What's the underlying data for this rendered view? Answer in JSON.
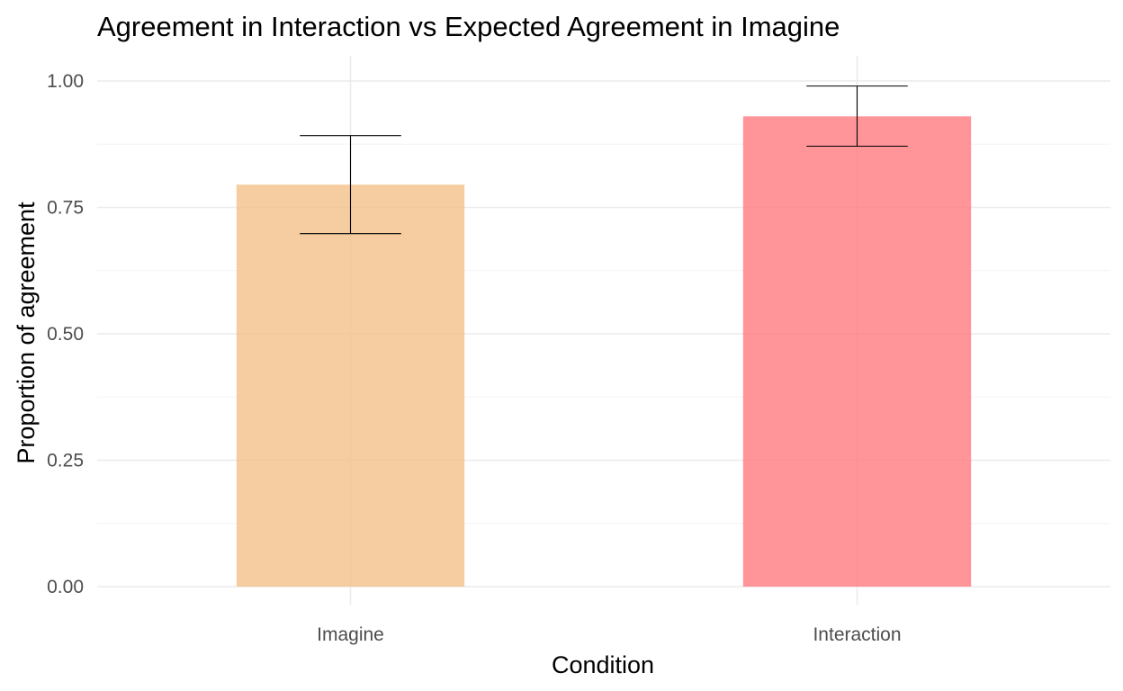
{
  "chart_data": {
    "type": "bar",
    "title": "Agreement in Interaction  vs Expected Agreement in Imagine",
    "xlabel": "Condition",
    "ylabel": "Proportion of agreement",
    "categories": [
      "Imagine",
      "Interaction"
    ],
    "values": [
      0.795,
      0.93
    ],
    "error_lower": [
      0.698,
      0.871
    ],
    "error_upper": [
      0.892,
      0.99
    ],
    "bar_colors": [
      "#F2C08A",
      "#FF7A80"
    ],
    "bar_opacity": 0.8,
    "ylim": [
      0,
      1.05
    ],
    "y_ticks": [
      0.0,
      0.25,
      0.5,
      0.75,
      1.0
    ],
    "y_tick_labels": [
      "0.00",
      "0.25",
      "0.50",
      "0.75",
      "1.00"
    ],
    "grid": true,
    "legend": "none"
  }
}
